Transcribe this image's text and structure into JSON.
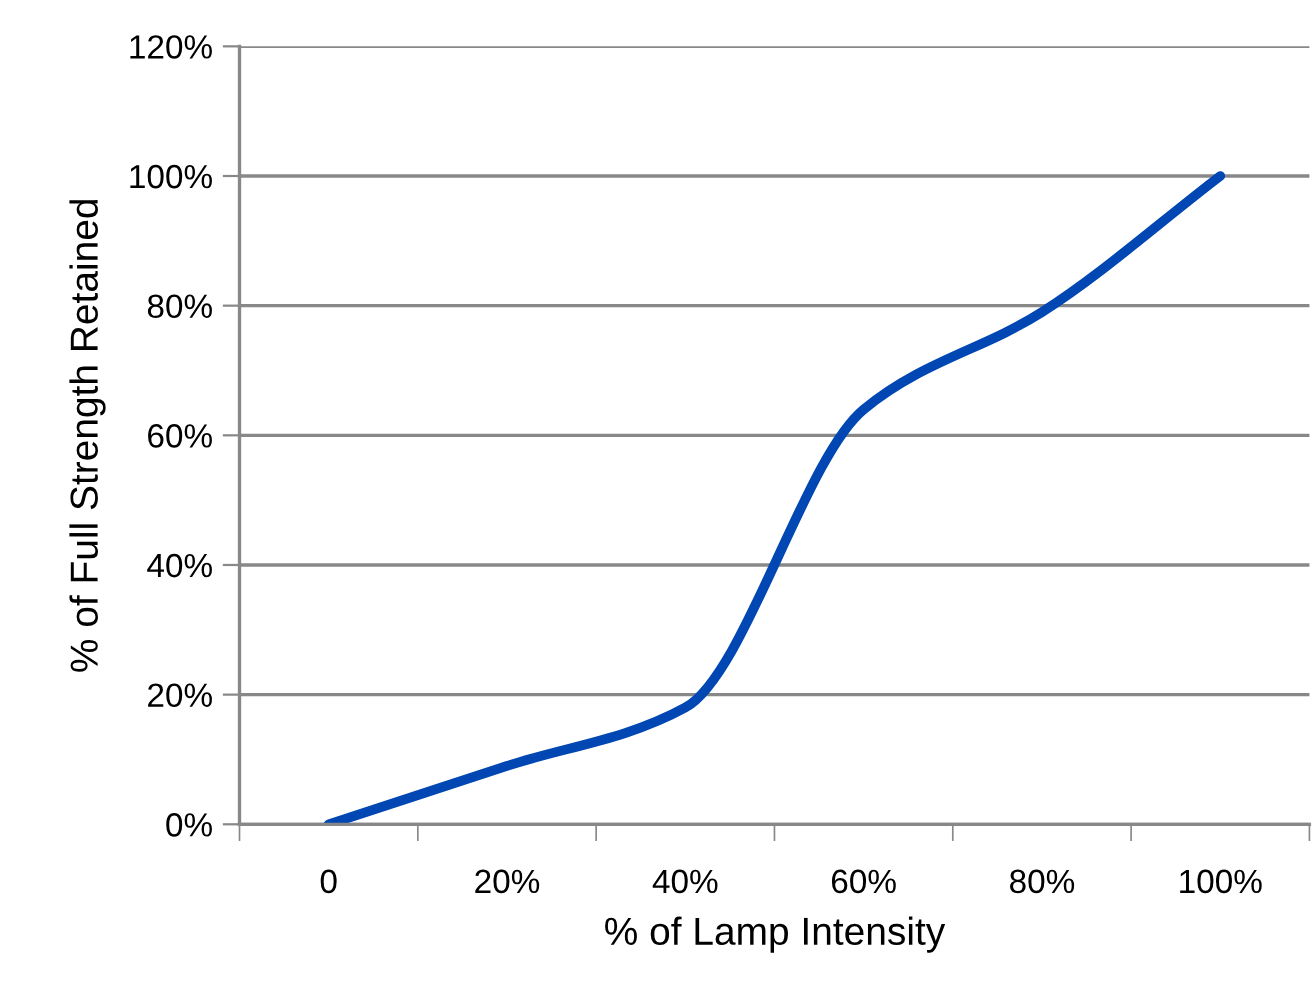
{
  "chart_data": {
    "type": "line",
    "xlabel": "% of Lamp Intensity",
    "ylabel": "% of Full Strength Retained",
    "categories": [
      "0",
      "20%",
      "40%",
      "60%",
      "80%",
      "100%"
    ],
    "series": [
      {
        "color": "#0047b3",
        "values": [
          0,
          9,
          18,
          64,
          79,
          100
        ]
      }
    ],
    "ylim": [
      0,
      120
    ],
    "yticks": [
      {
        "value": 0,
        "label": "0%"
      },
      {
        "value": 20,
        "label": "20%"
      },
      {
        "value": 40,
        "label": "40%"
      },
      {
        "value": 60,
        "label": "60%"
      },
      {
        "value": 80,
        "label": "80%"
      },
      {
        "value": 100,
        "label": "100%"
      },
      {
        "value": 120,
        "label": "120%"
      }
    ],
    "grid": "y",
    "legend": false,
    "marker": "none",
    "line_style": "solid"
  }
}
